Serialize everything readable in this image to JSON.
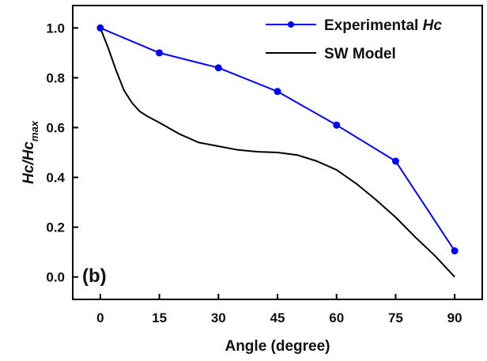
{
  "chart_data": {
    "type": "line",
    "panel_label": "(b)",
    "xlabel": "Angle (degree)",
    "ylabel": {
      "main": "Hc/Hc",
      "subscript": "max"
    },
    "xlim": [
      -7,
      97
    ],
    "ylim": [
      -0.09,
      1.09
    ],
    "x_ticks": [
      0,
      15,
      30,
      45,
      60,
      75,
      90
    ],
    "y_ticks": [
      0.0,
      0.2,
      0.4,
      0.6,
      0.8,
      1.0
    ],
    "grid": false,
    "legend": {
      "placement": "top-right",
      "entries": [
        {
          "prefix": "Experimental ",
          "italic": "Hc"
        },
        {
          "prefix": "SW Model",
          "italic": ""
        }
      ]
    },
    "series": [
      {
        "name": "Experimental Hc",
        "color": "#0000ff",
        "marker": "circle",
        "x": [
          0,
          15,
          30,
          45,
          60,
          75,
          90
        ],
        "y": [
          1.0,
          0.9,
          0.84,
          0.745,
          0.61,
          0.465,
          0.105
        ]
      },
      {
        "name": "SW Model",
        "color": "#000000",
        "marker": "none",
        "x": [
          0,
          2,
          4,
          6,
          8,
          10,
          12,
          15,
          20,
          25,
          30,
          35,
          40,
          45,
          50,
          55,
          60,
          65,
          70,
          75,
          80,
          85,
          90
        ],
        "y": [
          1.0,
          0.92,
          0.83,
          0.75,
          0.7,
          0.665,
          0.645,
          0.62,
          0.575,
          0.54,
          0.525,
          0.51,
          0.503,
          0.5,
          0.49,
          0.465,
          0.43,
          0.375,
          0.31,
          0.24,
          0.16,
          0.085,
          0.0
        ]
      }
    ]
  }
}
